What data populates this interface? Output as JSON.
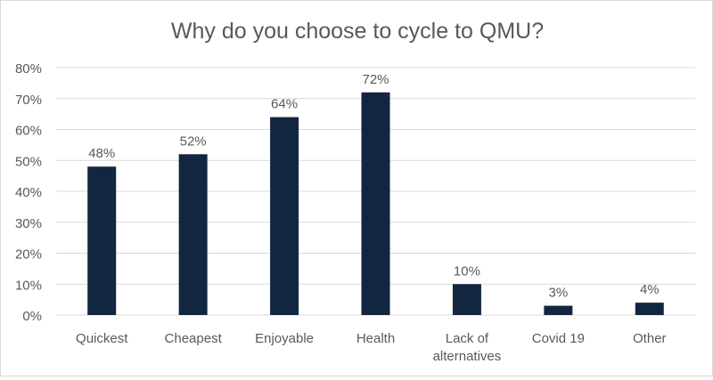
{
  "chart_data": {
    "type": "bar",
    "title": "Why do you choose to cycle to QMU?",
    "xlabel": "",
    "ylabel": "",
    "categories": [
      "Quickest",
      "Cheapest",
      "Enjoyable",
      "Health",
      "Lack of alternatives",
      "Covid 19",
      "Other"
    ],
    "category_lines": [
      [
        "Quickest"
      ],
      [
        "Cheapest"
      ],
      [
        "Enjoyable"
      ],
      [
        "Health"
      ],
      [
        "Lack of",
        "alternatives"
      ],
      [
        "Covid 19"
      ],
      [
        "Other"
      ]
    ],
    "values": [
      48,
      52,
      64,
      72,
      10,
      3,
      4
    ],
    "data_labels": [
      "48%",
      "52%",
      "64%",
      "72%",
      "10%",
      "3%",
      "4%"
    ],
    "ylim": [
      0,
      80
    ],
    "yticks": [
      0,
      10,
      20,
      30,
      40,
      50,
      60,
      70,
      80
    ],
    "ytick_labels": [
      "0%",
      "10%",
      "20%",
      "30%",
      "40%",
      "50%",
      "60%",
      "70%",
      "80%"
    ],
    "grid": true,
    "legend": "none",
    "bar_color": "#132640"
  }
}
